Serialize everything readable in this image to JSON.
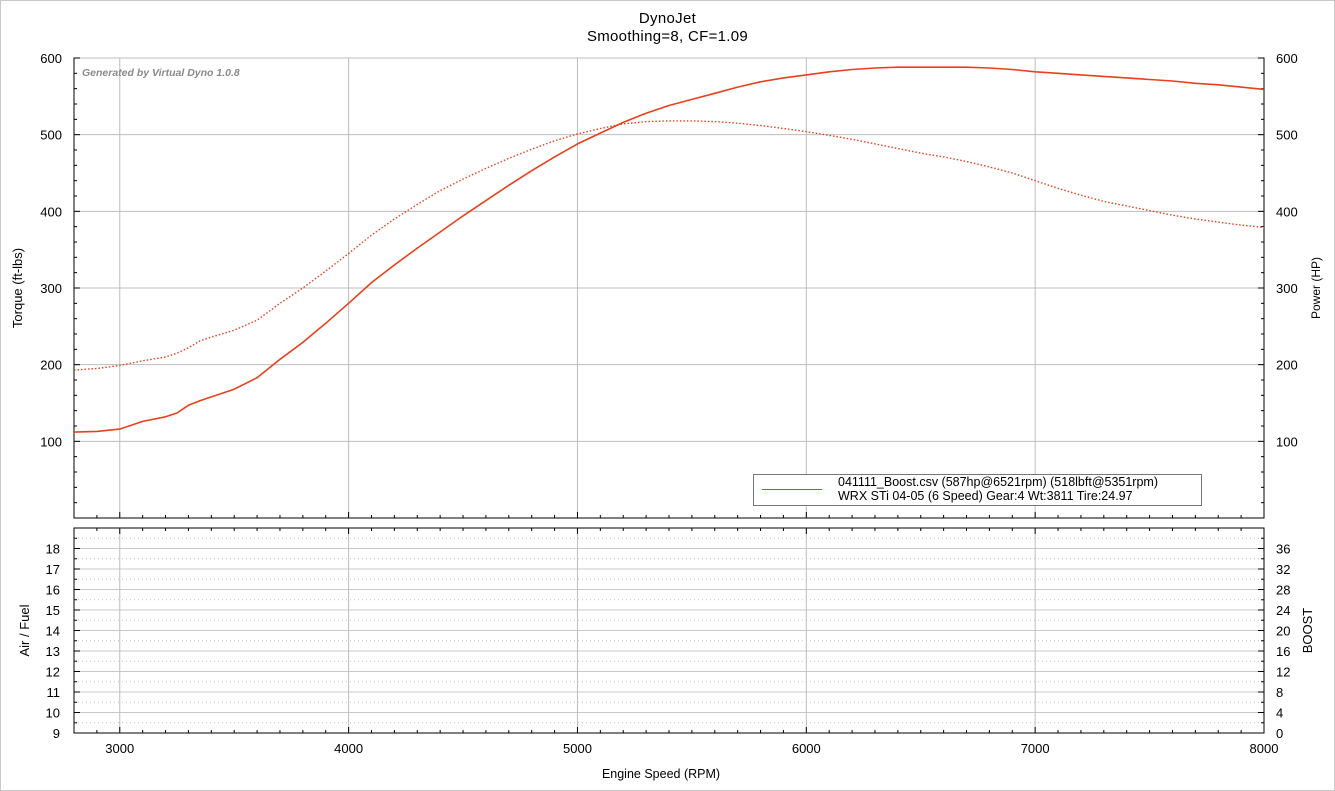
{
  "header": {
    "title": "DynoJet",
    "subtitle": "Smoothing=8, CF=1.09"
  },
  "watermark": "Generated by Virtual Dyno 1.0.8",
  "legend": {
    "line1": "041111_Boost.csv (587hp@6521rpm) (518lbft@5351rpm)",
    "line2": "WRX STi 04-05 (6 Speed) Gear:4 Wt:3811 Tire:24.97"
  },
  "chart_data": [
    {
      "type": "line",
      "xlabel": "Engine Speed (RPM)",
      "ylabel": "Torque (ft-lbs)",
      "y2label": "Power (HP)",
      "xlim": [
        2800,
        8000
      ],
      "ylim": [
        0,
        600
      ],
      "y2lim": [
        0,
        600
      ],
      "x_ticks": [
        3000,
        4000,
        5000,
        6000,
        7000,
        8000
      ],
      "y_ticks": [
        100,
        200,
        300,
        400,
        500,
        600
      ],
      "y2_ticks": [
        100,
        200,
        300,
        400,
        500,
        600
      ],
      "grid": true,
      "legend_position": "bottom-right",
      "color": "#e8401c",
      "series": [
        {
          "name": "Power (HP)",
          "style": "solid",
          "x": [
            2800,
            2900,
            3000,
            3050,
            3100,
            3200,
            3250,
            3300,
            3350,
            3400,
            3500,
            3600,
            3700,
            3800,
            3900,
            4000,
            4100,
            4200,
            4300,
            4400,
            4500,
            4600,
            4700,
            4800,
            4900,
            5000,
            5100,
            5200,
            5300,
            5400,
            5500,
            5600,
            5700,
            5800,
            5900,
            6000,
            6100,
            6200,
            6300,
            6400,
            6500,
            6600,
            6700,
            6800,
            6900,
            7000,
            7100,
            7200,
            7300,
            7400,
            7500,
            7600,
            7700,
            7800,
            7900,
            8000
          ],
          "values": [
            112,
            113,
            116,
            121,
            126,
            132,
            137,
            147,
            153,
            158,
            168,
            183,
            207,
            229,
            254,
            280,
            307,
            330,
            352,
            373,
            394,
            414,
            434,
            453,
            471,
            488,
            502,
            516,
            528,
            538,
            546,
            554,
            562,
            569,
            574,
            578,
            582,
            585,
            587,
            588,
            588,
            588,
            588,
            587,
            585,
            582,
            580,
            578,
            576,
            574,
            572,
            570,
            567,
            565,
            562,
            559
          ]
        },
        {
          "name": "Torque (ft-lbs)",
          "style": "dotted",
          "x": [
            2800,
            2900,
            3000,
            3100,
            3200,
            3250,
            3300,
            3350,
            3400,
            3500,
            3600,
            3700,
            3800,
            3900,
            4000,
            4100,
            4200,
            4300,
            4400,
            4500,
            4600,
            4700,
            4800,
            4900,
            5000,
            5100,
            5200,
            5300,
            5400,
            5500,
            5600,
            5700,
            5800,
            5900,
            6000,
            6100,
            6200,
            6300,
            6400,
            6500,
            6600,
            6700,
            6800,
            6900,
            7000,
            7100,
            7200,
            7300,
            7400,
            7500,
            7600,
            7700,
            7800,
            7900,
            8000
          ],
          "values": [
            193,
            195,
            199,
            205,
            210,
            215,
            222,
            231,
            236,
            245,
            258,
            280,
            300,
            322,
            345,
            369,
            390,
            409,
            427,
            442,
            456,
            469,
            481,
            492,
            501,
            508,
            514,
            517,
            518,
            518,
            517,
            515,
            512,
            508,
            504,
            499,
            494,
            488,
            482,
            476,
            471,
            465,
            458,
            450,
            440,
            430,
            421,
            413,
            407,
            401,
            395,
            390,
            386,
            382,
            379
          ]
        }
      ]
    },
    {
      "type": "line",
      "ylabel": "Air / Fuel",
      "y2label": "BOOST",
      "xlim": [
        2800,
        8000
      ],
      "ylim": [
        9,
        19
      ],
      "y2lim": [
        0,
        40
      ],
      "x_ticks": [
        3000,
        4000,
        5000,
        6000,
        7000,
        8000
      ],
      "y_ticks": [
        9,
        10,
        11,
        12,
        13,
        14,
        15,
        16,
        17,
        18
      ],
      "y2_ticks": [
        0,
        4,
        8,
        12,
        16,
        20,
        24,
        28,
        32,
        36
      ],
      "grid": true,
      "series": []
    }
  ]
}
